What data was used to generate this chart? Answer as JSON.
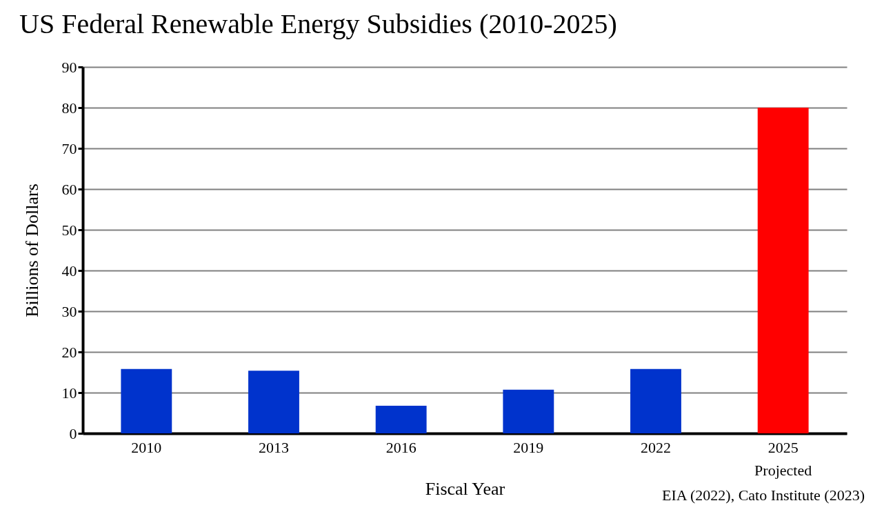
{
  "chart_data": {
    "type": "bar",
    "title": "US Federal Renewable Energy Subsidies (2010-2025)",
    "xlabel": "Fiscal Year",
    "ylabel": "Billions of Dollars",
    "categories": [
      "2010",
      "2013",
      "2016",
      "2019",
      "2022",
      "2025"
    ],
    "values": [
      15.8,
      15.4,
      6.8,
      10.7,
      15.8,
      80
    ],
    "colors": [
      "#0033cc",
      "#0033cc",
      "#0033cc",
      "#0033cc",
      "#0033cc",
      "#ff0000"
    ],
    "ylim": [
      0,
      90
    ],
    "yticks": [
      0,
      10,
      20,
      30,
      40,
      50,
      60,
      70,
      80,
      90
    ],
    "grid": "y",
    "annotations": [
      "Projected",
      "EIA (2022), Cato Institute (2023)"
    ]
  }
}
